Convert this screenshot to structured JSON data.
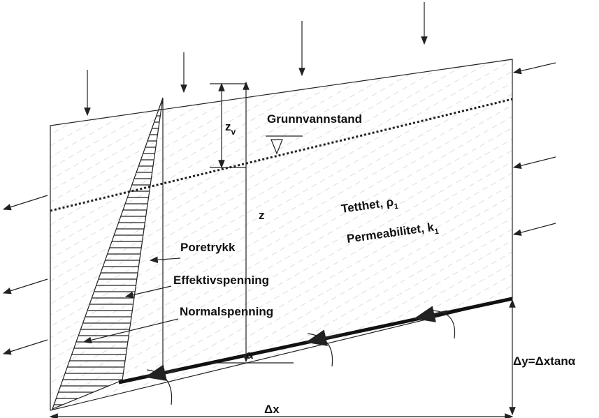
{
  "labels": {
    "zv": {
      "text": "z",
      "sub": "v"
    },
    "grunnvannstand": "Grunnvannstand",
    "z": "z",
    "tetthet": {
      "text": "Tetthet, ρ",
      "sub": "1"
    },
    "permeabilitet": {
      "text": "Permeabilitet, k",
      "sub": "1"
    },
    "poretrykk": "Poretrykk",
    "effektivspenning": "Effektivspenning",
    "normalspenning": "Normalspenning",
    "alpha": "α",
    "dy": "Δy=Δxtanα",
    "dx": "Δx"
  }
}
